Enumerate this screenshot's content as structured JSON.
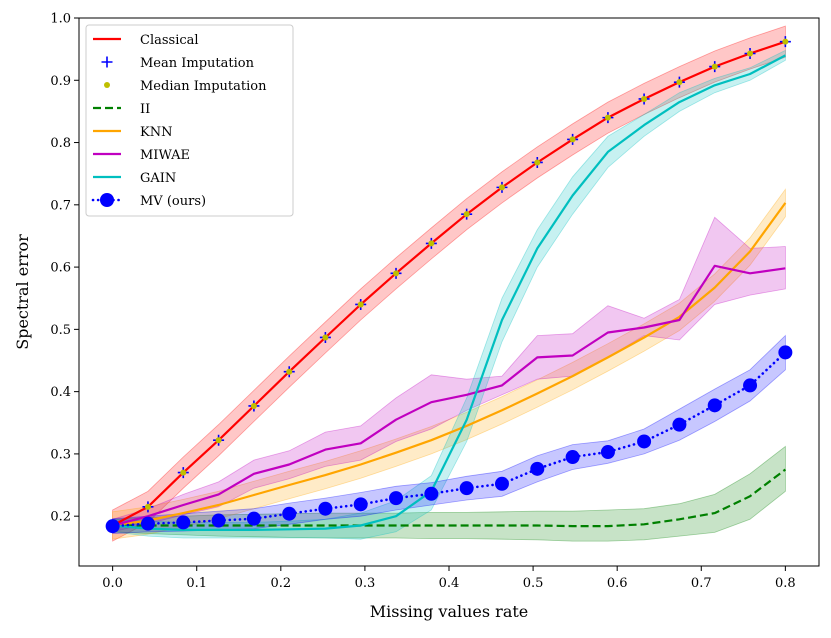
{
  "chart_data": {
    "type": "line",
    "title": "",
    "xlabel": "Missing values rate",
    "ylabel": "Spectral error",
    "xlim": [
      -0.04,
      0.84
    ],
    "ylim": [
      0.12,
      1.0
    ],
    "x_ticks": [
      0.0,
      0.1,
      0.2,
      0.3,
      0.4,
      0.5,
      0.6,
      0.7,
      0.8
    ],
    "x_tick_labels": [
      "0.0",
      "0.1",
      "0.2",
      "0.3",
      "0.4",
      "0.5",
      "0.6",
      "0.7",
      "0.8"
    ],
    "y_ticks": [
      0.2,
      0.3,
      0.4,
      0.5,
      0.6,
      0.7,
      0.8,
      0.9,
      1.0
    ],
    "y_tick_labels": [
      "0.2",
      "0.3",
      "0.4",
      "0.5",
      "0.6",
      "0.7",
      "0.8",
      "0.9",
      "1.0"
    ],
    "legend_position": "top-left",
    "x": [
      0.0,
      0.042,
      0.084,
      0.126,
      0.168,
      0.21,
      0.253,
      0.295,
      0.337,
      0.379,
      0.421,
      0.463,
      0.505,
      0.547,
      0.589,
      0.632,
      0.674,
      0.716,
      0.758,
      0.8
    ],
    "series": [
      {
        "name": "Classical",
        "color": "#ff0000",
        "style": "solid",
        "marker": "none",
        "values": [
          0.185,
          0.215,
          0.27,
          0.322,
          0.377,
          0.432,
          0.487,
          0.54,
          0.59,
          0.638,
          0.685,
          0.728,
          0.768,
          0.805,
          0.84,
          0.87,
          0.897,
          0.922,
          0.943,
          0.962
        ],
        "band": 0.025
      },
      {
        "name": "Mean Imputation",
        "color": "#0000ff",
        "style": "none",
        "marker": "plus",
        "values": [
          0.185,
          0.215,
          0.27,
          0.322,
          0.377,
          0.432,
          0.487,
          0.54,
          0.59,
          0.638,
          0.685,
          0.728,
          0.768,
          0.805,
          0.84,
          0.87,
          0.897,
          0.922,
          0.943,
          0.962
        ]
      },
      {
        "name": "Median Imputation",
        "color": "#bfbf00",
        "style": "none",
        "marker": "dot",
        "values": [
          0.185,
          0.215,
          0.27,
          0.322,
          0.377,
          0.432,
          0.487,
          0.54,
          0.59,
          0.638,
          0.685,
          0.728,
          0.768,
          0.805,
          0.84,
          0.87,
          0.897,
          0.922,
          0.943,
          0.962
        ]
      },
      {
        "name": "II",
        "color": "#008000",
        "style": "dashed",
        "marker": "none",
        "values": [
          0.185,
          0.185,
          0.185,
          0.185,
          0.185,
          0.185,
          0.185,
          0.185,
          0.185,
          0.185,
          0.185,
          0.185,
          0.185,
          0.184,
          0.184,
          0.187,
          0.195,
          0.205,
          0.232,
          0.275
        ],
        "band_lower": [
          0.175,
          0.172,
          0.17,
          0.168,
          0.167,
          0.166,
          0.165,
          0.165,
          0.165,
          0.164,
          0.164,
          0.163,
          0.162,
          0.16,
          0.16,
          0.162,
          0.168,
          0.174,
          0.195,
          0.24
        ],
        "band_upper": [
          0.195,
          0.198,
          0.2,
          0.202,
          0.203,
          0.204,
          0.205,
          0.205,
          0.205,
          0.206,
          0.206,
          0.207,
          0.208,
          0.208,
          0.21,
          0.212,
          0.22,
          0.235,
          0.268,
          0.312
        ]
      },
      {
        "name": "KNN",
        "color": "#ffa500",
        "style": "solid",
        "marker": "none",
        "values": [
          0.185,
          0.193,
          0.205,
          0.218,
          0.234,
          0.25,
          0.266,
          0.283,
          0.302,
          0.322,
          0.345,
          0.37,
          0.397,
          0.425,
          0.455,
          0.487,
          0.52,
          0.567,
          0.625,
          0.703
        ],
        "band": 0.022
      },
      {
        "name": "MIWAE",
        "color": "#c000c0",
        "style": "solid",
        "marker": "none",
        "values": [
          0.185,
          0.2,
          0.218,
          0.235,
          0.268,
          0.283,
          0.307,
          0.317,
          0.355,
          0.383,
          0.395,
          0.41,
          0.455,
          0.458,
          0.495,
          0.503,
          0.515,
          0.602,
          0.59,
          0.598
        ],
        "band_lower": [
          0.175,
          0.188,
          0.202,
          0.215,
          0.245,
          0.26,
          0.28,
          0.29,
          0.32,
          0.34,
          0.37,
          0.395,
          0.42,
          0.425,
          0.455,
          0.49,
          0.483,
          0.54,
          0.555,
          0.565
        ],
        "band_upper": [
          0.195,
          0.212,
          0.235,
          0.255,
          0.29,
          0.305,
          0.335,
          0.345,
          0.39,
          0.427,
          0.42,
          0.425,
          0.49,
          0.493,
          0.538,
          0.518,
          0.548,
          0.68,
          0.63,
          0.633
        ]
      },
      {
        "name": "GAIN",
        "color": "#00bfbf",
        "style": "solid",
        "marker": "none",
        "values": [
          0.185,
          0.18,
          0.178,
          0.178,
          0.178,
          0.179,
          0.18,
          0.185,
          0.2,
          0.24,
          0.355,
          0.515,
          0.63,
          0.715,
          0.785,
          0.828,
          0.865,
          0.892,
          0.91,
          0.94
        ],
        "band_lower": [
          0.175,
          0.168,
          0.165,
          0.165,
          0.165,
          0.165,
          0.165,
          0.163,
          0.175,
          0.21,
          0.32,
          0.48,
          0.6,
          0.685,
          0.76,
          0.81,
          0.85,
          0.88,
          0.9,
          0.932
        ],
        "band_upper": [
          0.195,
          0.192,
          0.19,
          0.19,
          0.19,
          0.192,
          0.195,
          0.205,
          0.225,
          0.265,
          0.39,
          0.55,
          0.66,
          0.745,
          0.81,
          0.845,
          0.88,
          0.903,
          0.92,
          0.948
        ]
      },
      {
        "name": "MV (ours)",
        "color": "#0000ff",
        "style": "dotted",
        "marker": "circle",
        "values": [
          0.184,
          0.188,
          0.19,
          0.193,
          0.196,
          0.204,
          0.212,
          0.219,
          0.229,
          0.236,
          0.245,
          0.252,
          0.276,
          0.295,
          0.303,
          0.32,
          0.347,
          0.378,
          0.41,
          0.463
        ],
        "band_lower": [
          0.172,
          0.175,
          0.176,
          0.178,
          0.18,
          0.187,
          0.195,
          0.2,
          0.21,
          0.218,
          0.226,
          0.232,
          0.255,
          0.275,
          0.285,
          0.3,
          0.322,
          0.352,
          0.385,
          0.435
        ],
        "band_upper": [
          0.196,
          0.2,
          0.204,
          0.208,
          0.212,
          0.221,
          0.229,
          0.238,
          0.248,
          0.254,
          0.264,
          0.272,
          0.297,
          0.315,
          0.321,
          0.34,
          0.372,
          0.404,
          0.435,
          0.49
        ]
      }
    ]
  }
}
